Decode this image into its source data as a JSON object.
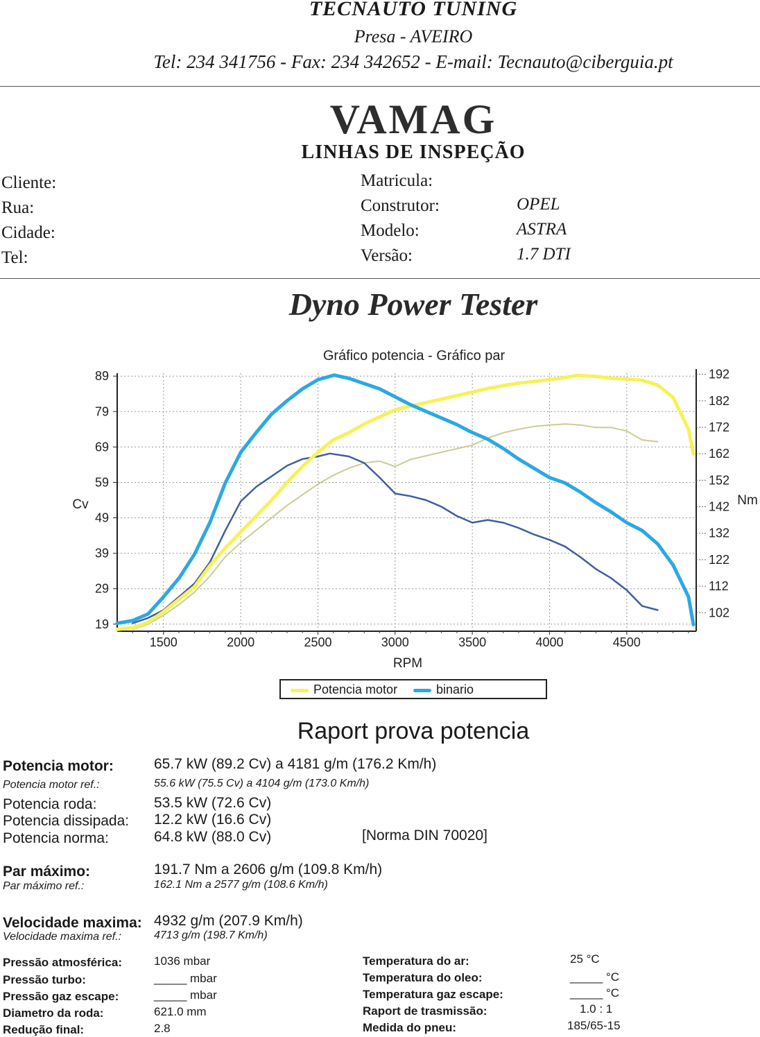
{
  "header": {
    "company": "TECNAUTO TUNING",
    "city": "Presa - AVEIRO",
    "contact": "Tel: 234 341756 - Fax: 234 342652 - E-mail: Tecnauto@ciberguia.pt"
  },
  "brand": {
    "name": "VAMAG",
    "subtitle": "LINHAS DE INSPEÇÃO"
  },
  "client": {
    "fields": [
      {
        "label": "Cliente:",
        "value": ""
      },
      {
        "label": "Rua:",
        "value": ""
      },
      {
        "label": "Cidade:",
        "value": ""
      },
      {
        "label": "Tel:",
        "value": ""
      }
    ]
  },
  "vehicle": {
    "fields": [
      {
        "label": "Matricula:",
        "value": ""
      },
      {
        "label": "Construtor:",
        "value": "OPEL"
      },
      {
        "label": "Modelo:",
        "value": "ASTRA"
      },
      {
        "label": "Versão:",
        "value": "1.7 DTI"
      }
    ]
  },
  "document_title": "Dyno Power Tester",
  "chart_data": {
    "type": "line",
    "title": "Gráfico potencia - Gráfico par",
    "xlabel": "RPM",
    "ylabel_left": "Cv",
    "ylabel_right": "Nm",
    "xlim": [
      1200,
      4950
    ],
    "ylim_left": [
      17,
      91
    ],
    "ylim_right": [
      95,
      194
    ],
    "x_ticks": [
      1500,
      2000,
      2500,
      3000,
      3500,
      4000,
      4500
    ],
    "y_ticks_left": [
      19,
      29,
      39,
      49,
      59,
      69,
      79,
      89
    ],
    "y_ticks_right": [
      102,
      112,
      122,
      132,
      142,
      152,
      162,
      172,
      182,
      192
    ],
    "grid": true,
    "legend_position": "bottom-center",
    "colors": {
      "power": "#f5f25a",
      "torque": "#2ba8e3",
      "power_ref": "#c9c98a",
      "torque_ref": "#3f5ea0"
    },
    "series": [
      {
        "name": "Potencia motor",
        "axis": "left",
        "role": "power",
        "points": [
          [
            1200,
            17.5
          ],
          [
            1300,
            18.0
          ],
          [
            1400,
            19.5
          ],
          [
            1500,
            22.5
          ],
          [
            1600,
            26.0
          ],
          [
            1700,
            29.5
          ],
          [
            1800,
            35.5
          ],
          [
            1900,
            40.5
          ],
          [
            2000,
            45.0
          ],
          [
            2100,
            49.5
          ],
          [
            2200,
            54.0
          ],
          [
            2300,
            59.0
          ],
          [
            2400,
            63.5
          ],
          [
            2500,
            67.5
          ],
          [
            2600,
            71.0
          ],
          [
            2700,
            73.0
          ],
          [
            2800,
            75.5
          ],
          [
            2900,
            77.5
          ],
          [
            3000,
            79.5
          ],
          [
            3100,
            80.5
          ],
          [
            3200,
            81.5
          ],
          [
            3300,
            82.5
          ],
          [
            3400,
            83.5
          ],
          [
            3500,
            84.5
          ],
          [
            3600,
            85.5
          ],
          [
            3700,
            86.3
          ],
          [
            3800,
            87.0
          ],
          [
            3900,
            87.5
          ],
          [
            4000,
            88.0
          ],
          [
            4100,
            88.6
          ],
          [
            4181,
            89.2
          ],
          [
            4300,
            88.9
          ],
          [
            4400,
            88.4
          ],
          [
            4500,
            88.2
          ],
          [
            4600,
            87.8
          ],
          [
            4700,
            86.5
          ],
          [
            4800,
            83.0
          ],
          [
            4900,
            74.0
          ],
          [
            4932,
            67.0
          ]
        ]
      },
      {
        "name": "binario",
        "axis": "right",
        "role": "torque",
        "points": [
          [
            1200,
            98.0
          ],
          [
            1300,
            99.0
          ],
          [
            1400,
            101.5
          ],
          [
            1500,
            108.0
          ],
          [
            1600,
            115.0
          ],
          [
            1700,
            124.0
          ],
          [
            1800,
            136.0
          ],
          [
            1900,
            151.0
          ],
          [
            2000,
            162.5
          ],
          [
            2100,
            170.0
          ],
          [
            2200,
            177.0
          ],
          [
            2300,
            182.0
          ],
          [
            2400,
            186.5
          ],
          [
            2500,
            190.0
          ],
          [
            2606,
            191.7
          ],
          [
            2700,
            190.5
          ],
          [
            2800,
            188.5
          ],
          [
            2900,
            186.5
          ],
          [
            3000,
            183.5
          ],
          [
            3100,
            180.5
          ],
          [
            3200,
            178.0
          ],
          [
            3300,
            175.5
          ],
          [
            3400,
            173.0
          ],
          [
            3500,
            170.0
          ],
          [
            3600,
            167.5
          ],
          [
            3700,
            164.0
          ],
          [
            3800,
            160.0
          ],
          [
            3900,
            156.5
          ],
          [
            4000,
            153.0
          ],
          [
            4100,
            151.0
          ],
          [
            4200,
            147.5
          ],
          [
            4300,
            143.5
          ],
          [
            4400,
            140.0
          ],
          [
            4500,
            136.0
          ],
          [
            4600,
            133.0
          ],
          [
            4700,
            128.0
          ],
          [
            4800,
            120.0
          ],
          [
            4900,
            108.0
          ],
          [
            4932,
            97.5
          ]
        ]
      },
      {
        "name": "Potencia motor ref.",
        "axis": "left",
        "role": "power_ref",
        "points": [
          [
            1300,
            17.5
          ],
          [
            1400,
            19.0
          ],
          [
            1500,
            21.5
          ],
          [
            1600,
            24.5
          ],
          [
            1700,
            28.0
          ],
          [
            1800,
            32.5
          ],
          [
            1900,
            38.0
          ],
          [
            2000,
            42.0
          ],
          [
            2100,
            45.5
          ],
          [
            2200,
            49.0
          ],
          [
            2300,
            52.5
          ],
          [
            2400,
            55.5
          ],
          [
            2500,
            58.5
          ],
          [
            2600,
            61.0
          ],
          [
            2700,
            63.0
          ],
          [
            2800,
            64.5
          ],
          [
            2900,
            65.0
          ],
          [
            3000,
            63.5
          ],
          [
            3100,
            65.5
          ],
          [
            3200,
            66.5
          ],
          [
            3300,
            67.5
          ],
          [
            3400,
            68.5
          ],
          [
            3500,
            69.5
          ],
          [
            3600,
            71.5
          ],
          [
            3700,
            73.0
          ],
          [
            3800,
            74.0
          ],
          [
            3900,
            74.8
          ],
          [
            4000,
            75.2
          ],
          [
            4104,
            75.5
          ],
          [
            4200,
            75.2
          ],
          [
            4300,
            74.5
          ],
          [
            4400,
            74.5
          ],
          [
            4500,
            73.5
          ],
          [
            4600,
            71.0
          ],
          [
            4700,
            70.5
          ]
        ]
      },
      {
        "name": "Par máximo ref.",
        "axis": "right",
        "role": "torque_ref",
        "points": [
          [
            1300,
            98.0
          ],
          [
            1400,
            100.0
          ],
          [
            1500,
            103.0
          ],
          [
            1600,
            108.0
          ],
          [
            1700,
            113.0
          ],
          [
            1800,
            121.0
          ],
          [
            1900,
            133.0
          ],
          [
            2000,
            144.0
          ],
          [
            2100,
            149.5
          ],
          [
            2200,
            153.5
          ],
          [
            2300,
            157.5
          ],
          [
            2400,
            160.0
          ],
          [
            2500,
            161.0
          ],
          [
            2577,
            162.1
          ],
          [
            2700,
            161.0
          ],
          [
            2800,
            158.5
          ],
          [
            2900,
            153.0
          ],
          [
            3000,
            147.0
          ],
          [
            3100,
            146.0
          ],
          [
            3200,
            144.5
          ],
          [
            3300,
            142.0
          ],
          [
            3400,
            138.5
          ],
          [
            3500,
            136.0
          ],
          [
            3600,
            137.0
          ],
          [
            3700,
            136.0
          ],
          [
            3800,
            134.0
          ],
          [
            3900,
            131.5
          ],
          [
            4000,
            129.5
          ],
          [
            4100,
            127.0
          ],
          [
            4200,
            123.0
          ],
          [
            4300,
            118.5
          ],
          [
            4400,
            115.0
          ],
          [
            4500,
            110.5
          ],
          [
            4600,
            104.5
          ],
          [
            4700,
            103.0
          ]
        ]
      }
    ]
  },
  "report": {
    "title": "Raport prova potencia",
    "rows": [
      {
        "label": "Potencia motor:",
        "value": "65.7 kW (89.2 Cv) a 4181 g/m (176.2 Km/h)"
      },
      {
        "label": "Potencia motor ref.:",
        "value": "55.6 kW (75.5 Cv) a 4104 g/m (173.0 Km/h)"
      },
      {
        "label": "Potencia roda:",
        "value": "53.5 kW (72.6 Cv)"
      },
      {
        "label": "Potencia dissipada:",
        "value": "12.2 kW (16.6 Cv)"
      },
      {
        "label": "Potencia norma:",
        "value": "64.8 kW (88.0 Cv)",
        "note": "[Norma DIN 70020]"
      },
      {
        "label": "Par máximo:",
        "value": "191.7 Nm a 2606 g/m (109.8 Km/h)"
      },
      {
        "label": "Par máximo ref.:",
        "value": "162.1 Nm a 2577 g/m (108.6 Km/h)"
      },
      {
        "label": "Velocidade maxima:",
        "value": "4932 g/m (207.9 Km/h)"
      },
      {
        "label": "Velocidade maxima ref.:",
        "value": "4713 g/m (198.7 Km/h)"
      }
    ]
  },
  "params": {
    "left": [
      {
        "label": "Pressão atmosférica:",
        "value": "1036 mbar"
      },
      {
        "label": "Pressão turbo:",
        "value": "_____ mbar"
      },
      {
        "label": "Pressão gaz escape:",
        "value": "_____ mbar"
      },
      {
        "label": "Diametro da roda:",
        "value": "621.0 mm"
      },
      {
        "label": "Redução final:",
        "value": "2.8"
      }
    ],
    "right": [
      {
        "label": "Temperatura do ar:",
        "value": "25 °C"
      },
      {
        "label": "Temperatura do oleo:",
        "value": "_____ °C"
      },
      {
        "label": "Temperatura gaz escape:",
        "value": "_____ °C"
      },
      {
        "label": "Raport de trasmissão:",
        "value": "1.0 : 1"
      },
      {
        "label": "Medida do pneu:",
        "value": "185/65-15"
      }
    ]
  }
}
